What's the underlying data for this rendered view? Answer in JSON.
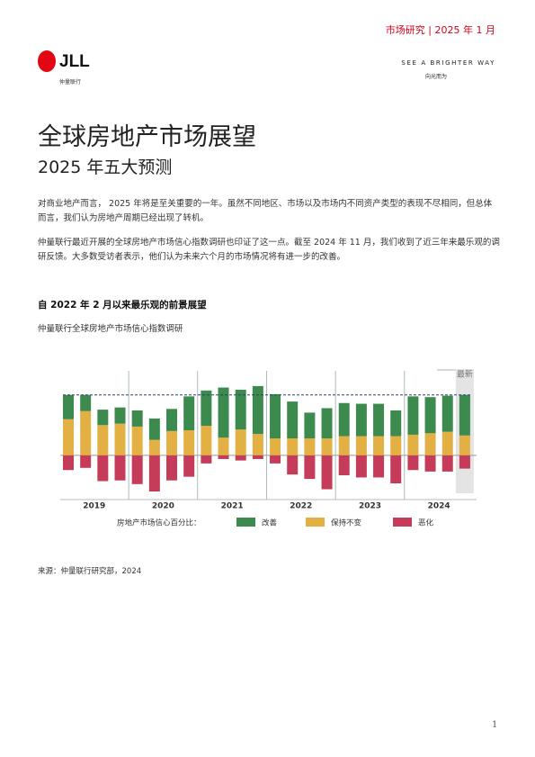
{
  "header": {
    "tag": "市场研究 | 2025 年 1 月",
    "logo": "JLL",
    "logo_sub": "仲量联行",
    "slogan": "SEE A BRIGHTER WAY",
    "slogan_sub": "向光而为"
  },
  "title": "全球房地产市场展望",
  "subtitle": "2025 年五大预测",
  "paragraphs": [
    "对商业地产而言， 2025 年将是至关重要的一年。虽然不同地区、市场以及市场内不同资产类型的表现不尽相同，但总体而言，我们认为房地产周期已经出现了转机。",
    "仲量联行最近开展的全球房地产市场信心指数调研也印证了这一点。截至 2024 年 11 月，我们收到了近三年来最乐观的调研反馈。大多数受访者表示，他们认为未来六个月的市场情况将有进一步的改善。"
  ],
  "section_heading": "自 2022 年 2 月以来最乐观的前景展望",
  "chart_data": {
    "type": "bar",
    "stacked": true,
    "title": "仲量联行全球房地产市场信心指数调研",
    "legend_title": "房地产市场信心百分比：",
    "latest_label": "最新",
    "categories": [
      null,
      null,
      null,
      null,
      null,
      null,
      null,
      null,
      null,
      null,
      null,
      null,
      null,
      null,
      null,
      null,
      null,
      null,
      null,
      null,
      null,
      null,
      null,
      null
    ],
    "year_labels": [
      "2019",
      "2020",
      "2021",
      "2022",
      "2023",
      "2024"
    ],
    "ylim": [
      -60,
      100
    ],
    "series": [
      {
        "name": "保持不变",
        "color": "#e3b044",
        "values": [
          49,
          60,
          41,
          43,
          39,
          21,
          33,
          34,
          40,
          24,
          35,
          29,
          23,
          23,
          23,
          23,
          26,
          26,
          26,
          26,
          28,
          30,
          32,
          27
        ]
      },
      {
        "name": "改善",
        "color": "#3d8a4f",
        "values": [
          33,
          22,
          21,
          22,
          22,
          29,
          30,
          46,
          48,
          68,
          54,
          65,
          60,
          50,
          35,
          41,
          45,
          44,
          44,
          35,
          52,
          49,
          49,
          55
        ]
      },
      {
        "name": "恶化",
        "color": "#c43c5a",
        "values": [
          -20,
          -17,
          -35,
          -34,
          -39,
          -49,
          -34,
          -29,
          -11,
          -5,
          -7,
          -5,
          -11,
          -26,
          -32,
          -46,
          -27,
          -30,
          -30,
          -38,
          -20,
          -22,
          -22,
          -18
        ]
      }
    ]
  },
  "source": "来源：仲量联行研究部，2024",
  "page_number": "1"
}
